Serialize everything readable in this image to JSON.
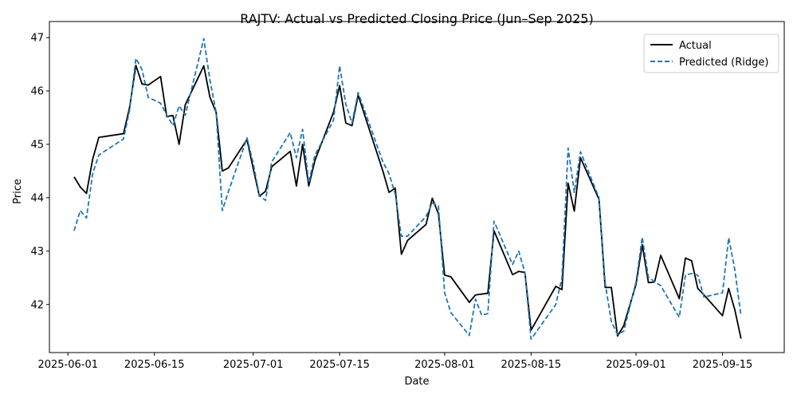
{
  "chart_data": {
    "type": "line",
    "title": "RAJTV: Actual vs Predicted Closing Price (Jun–Sep 2025)",
    "xlabel": "Date",
    "ylabel": "Price",
    "xlim": [
      "2025-05-29",
      "2025-09-25"
    ],
    "ylim": [
      41.1,
      47.3
    ],
    "x_ticks": [
      "2025-06-01",
      "2025-06-15",
      "2025-07-01",
      "2025-07-15",
      "2025-08-01",
      "2025-08-15",
      "2025-09-01",
      "2025-09-15"
    ],
    "y_ticks": [
      42,
      43,
      44,
      45,
      46,
      47
    ],
    "legend_position": "top-right",
    "grid": false,
    "series": [
      {
        "name": "Actual",
        "color": "#000000",
        "style": "solid",
        "points": [
          [
            "2025-06-02",
            44.39
          ],
          [
            "2025-06-03",
            44.2
          ],
          [
            "2025-06-04",
            44.08
          ],
          [
            "2025-06-05",
            44.72
          ],
          [
            "2025-06-06",
            45.13
          ],
          [
            "2025-06-10",
            45.2
          ],
          [
            "2025-06-11",
            45.7
          ],
          [
            "2025-06-12",
            46.48
          ],
          [
            "2025-06-13",
            46.13
          ],
          [
            "2025-06-14",
            46.11
          ],
          [
            "2025-06-16",
            46.27
          ],
          [
            "2025-06-17",
            45.52
          ],
          [
            "2025-06-18",
            45.54
          ],
          [
            "2025-06-19",
            45.0
          ],
          [
            "2025-06-20",
            45.74
          ],
          [
            "2025-06-23",
            46.47
          ],
          [
            "2025-06-24",
            45.88
          ],
          [
            "2025-06-25",
            45.6
          ],
          [
            "2025-06-26",
            44.5
          ],
          [
            "2025-06-27",
            44.56
          ],
          [
            "2025-06-30",
            45.09
          ],
          [
            "2025-07-01",
            44.55
          ],
          [
            "2025-07-02",
            44.03
          ],
          [
            "2025-07-03",
            44.12
          ],
          [
            "2025-07-04",
            44.58
          ],
          [
            "2025-07-07",
            44.87
          ],
          [
            "2025-07-08",
            44.22
          ],
          [
            "2025-07-09",
            45.0
          ],
          [
            "2025-07-10",
            44.22
          ],
          [
            "2025-07-11",
            44.7
          ],
          [
            "2025-07-14",
            45.6
          ],
          [
            "2025-07-15",
            46.1
          ],
          [
            "2025-07-16",
            45.4
          ],
          [
            "2025-07-17",
            45.35
          ],
          [
            "2025-07-18",
            45.92
          ],
          [
            "2025-07-22",
            44.5
          ],
          [
            "2025-07-23",
            44.1
          ],
          [
            "2025-07-24",
            44.18
          ],
          [
            "2025-07-25",
            42.94
          ],
          [
            "2025-07-26",
            43.2
          ],
          [
            "2025-07-29",
            43.5
          ],
          [
            "2025-07-30",
            43.99
          ],
          [
            "2025-07-31",
            43.7
          ],
          [
            "2025-08-01",
            42.55
          ],
          [
            "2025-08-02",
            42.52
          ],
          [
            "2025-08-05",
            42.04
          ],
          [
            "2025-08-06",
            42.18
          ],
          [
            "2025-08-08",
            42.21
          ],
          [
            "2025-08-09",
            43.38
          ],
          [
            "2025-08-12",
            42.56
          ],
          [
            "2025-08-13",
            42.62
          ],
          [
            "2025-08-14",
            42.6
          ],
          [
            "2025-08-15",
            41.52
          ],
          [
            "2025-08-19",
            42.34
          ],
          [
            "2025-08-20",
            42.28
          ],
          [
            "2025-08-21",
            44.27
          ],
          [
            "2025-08-22",
            43.75
          ],
          [
            "2025-08-23",
            44.75
          ],
          [
            "2025-08-26",
            43.97
          ],
          [
            "2025-08-27",
            42.32
          ],
          [
            "2025-08-28",
            42.32
          ],
          [
            "2025-08-29",
            41.41
          ],
          [
            "2025-08-30",
            41.6
          ],
          [
            "2025-09-01",
            42.38
          ],
          [
            "2025-09-02",
            43.12
          ],
          [
            "2025-09-03",
            42.41
          ],
          [
            "2025-09-04",
            42.42
          ],
          [
            "2025-09-05",
            42.92
          ],
          [
            "2025-09-08",
            42.11
          ],
          [
            "2025-09-09",
            42.87
          ],
          [
            "2025-09-10",
            42.82
          ],
          [
            "2025-09-11",
            42.3
          ],
          [
            "2025-09-12",
            42.18
          ],
          [
            "2025-09-15",
            41.79
          ],
          [
            "2025-09-16",
            42.3
          ],
          [
            "2025-09-17",
            41.9
          ],
          [
            "2025-09-18",
            41.36
          ]
        ]
      },
      {
        "name": "Predicted (Ridge)",
        "color": "#1f77b4",
        "style": "dashed",
        "points": [
          [
            "2025-06-02",
            43.38
          ],
          [
            "2025-06-03",
            43.76
          ],
          [
            "2025-06-04",
            43.62
          ],
          [
            "2025-06-05",
            44.45
          ],
          [
            "2025-06-06",
            44.8
          ],
          [
            "2025-06-10",
            45.1
          ],
          [
            "2025-06-11",
            45.65
          ],
          [
            "2025-06-12",
            46.61
          ],
          [
            "2025-06-13",
            46.4
          ],
          [
            "2025-06-14",
            45.88
          ],
          [
            "2025-06-16",
            45.77
          ],
          [
            "2025-06-17",
            45.55
          ],
          [
            "2025-06-18",
            45.35
          ],
          [
            "2025-06-19",
            45.72
          ],
          [
            "2025-06-20",
            45.55
          ],
          [
            "2025-06-23",
            46.98
          ],
          [
            "2025-06-24",
            46.2
          ],
          [
            "2025-06-25",
            45.6
          ],
          [
            "2025-06-26",
            43.76
          ],
          [
            "2025-06-27",
            44.12
          ],
          [
            "2025-06-30",
            45.12
          ],
          [
            "2025-07-01",
            44.65
          ],
          [
            "2025-07-02",
            44.04
          ],
          [
            "2025-07-03",
            43.95
          ],
          [
            "2025-07-04",
            44.67
          ],
          [
            "2025-07-07",
            45.22
          ],
          [
            "2025-07-08",
            44.75
          ],
          [
            "2025-07-09",
            45.28
          ],
          [
            "2025-07-10",
            44.28
          ],
          [
            "2025-07-11",
            44.8
          ],
          [
            "2025-07-14",
            45.45
          ],
          [
            "2025-07-15",
            46.47
          ],
          [
            "2025-07-16",
            45.75
          ],
          [
            "2025-07-17",
            45.4
          ],
          [
            "2025-07-18",
            45.97
          ],
          [
            "2025-07-22",
            44.67
          ],
          [
            "2025-07-23",
            44.45
          ],
          [
            "2025-07-24",
            44.07
          ],
          [
            "2025-07-25",
            43.28
          ],
          [
            "2025-07-26",
            43.28
          ],
          [
            "2025-07-29",
            43.65
          ],
          [
            "2025-07-30",
            43.9
          ],
          [
            "2025-07-31",
            43.85
          ],
          [
            "2025-08-01",
            42.22
          ],
          [
            "2025-08-02",
            41.85
          ],
          [
            "2025-08-05",
            41.42
          ],
          [
            "2025-08-06",
            42.1
          ],
          [
            "2025-08-07",
            41.8
          ],
          [
            "2025-08-08",
            41.83
          ],
          [
            "2025-08-09",
            43.56
          ],
          [
            "2025-08-12",
            42.75
          ],
          [
            "2025-08-13",
            43.0
          ],
          [
            "2025-08-14",
            42.6
          ],
          [
            "2025-08-15",
            41.35
          ],
          [
            "2025-08-19",
            42.0
          ],
          [
            "2025-08-20",
            42.5
          ],
          [
            "2025-08-21",
            44.93
          ],
          [
            "2025-08-22",
            44.1
          ],
          [
            "2025-08-23",
            44.86
          ],
          [
            "2025-08-26",
            44.0
          ],
          [
            "2025-08-27",
            42.4
          ],
          [
            "2025-08-28",
            41.68
          ],
          [
            "2025-08-29",
            41.44
          ],
          [
            "2025-08-30",
            41.5
          ],
          [
            "2025-09-01",
            42.42
          ],
          [
            "2025-09-02",
            43.26
          ],
          [
            "2025-09-03",
            42.51
          ],
          [
            "2025-09-05",
            42.35
          ],
          [
            "2025-09-08",
            41.76
          ],
          [
            "2025-09-09",
            42.55
          ],
          [
            "2025-09-10",
            42.58
          ],
          [
            "2025-09-11",
            42.55
          ],
          [
            "2025-09-12",
            42.14
          ],
          [
            "2025-09-15",
            42.22
          ],
          [
            "2025-09-16",
            43.25
          ],
          [
            "2025-09-17",
            42.65
          ],
          [
            "2025-09-18",
            41.78
          ]
        ]
      }
    ]
  }
}
